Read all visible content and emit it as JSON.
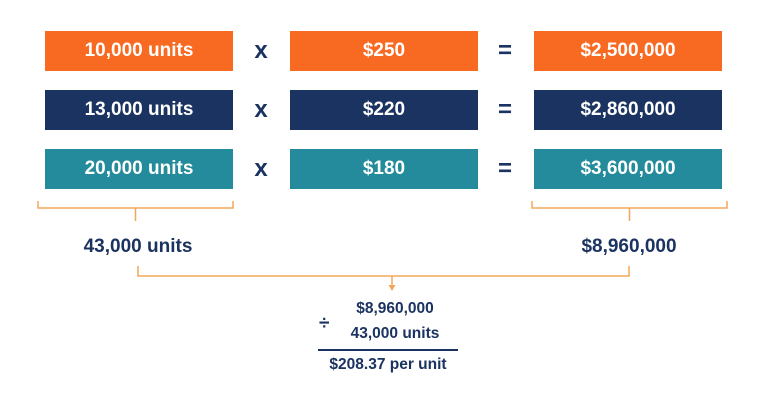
{
  "colors": {
    "orange": "#f86a21",
    "navy": "#1b3360",
    "teal": "#238b9b",
    "bracket": "#f0a85c",
    "text": "#1b3360"
  },
  "rows": [
    {
      "units": "10,000 units",
      "price": "$250",
      "revenue": "$2,500,000",
      "color": "#f86a21"
    },
    {
      "units": "13,000 units",
      "price": "$220",
      "revenue": "$2,860,000",
      "color": "#1b3360"
    },
    {
      "units": "20,000 units",
      "price": "$180",
      "revenue": "$3,600,000",
      "color": "#238b9b"
    }
  ],
  "operators": {
    "multiply": "x",
    "equals": "="
  },
  "totals": {
    "units": "43,000 units",
    "revenue": "$8,960,000"
  },
  "calculation": {
    "divide_symbol": "÷",
    "numerator": "$8,960,000",
    "denominator": "43,000 units",
    "result": "$208.37 per unit"
  }
}
